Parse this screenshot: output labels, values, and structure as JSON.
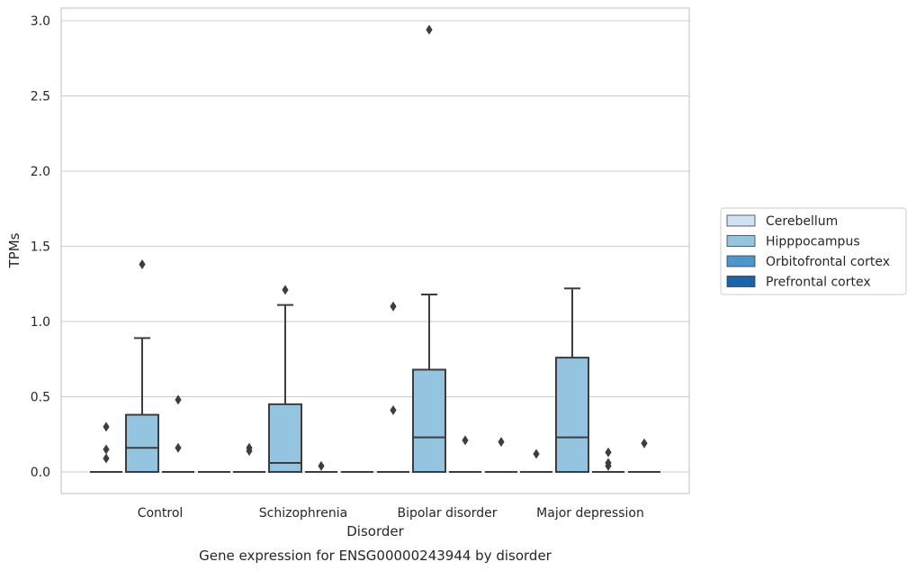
{
  "chart_data": {
    "type": "box",
    "caption": "Gene expression for ENSG00000243944 by disorder",
    "xlabel": "Disorder",
    "ylabel": "TPMs",
    "ylim": [
      -0.14,
      3.09
    ],
    "yticks": [
      0.0,
      0.5,
      1.0,
      1.5,
      2.0,
      2.5,
      3.0
    ],
    "ytick_labels": [
      "0.0",
      "0.5",
      "1.0",
      "1.5",
      "2.0",
      "2.5",
      "3.0"
    ],
    "grid": "horizontal",
    "legend_position": "right",
    "categories": [
      "Control",
      "Schizophrenia",
      "Bipolar disorder",
      "Major depression"
    ],
    "series": [
      {
        "name": "Cerebellum",
        "color": "#d0e1f1",
        "boxes": [
          {
            "q1": 0,
            "median": 0,
            "q3": 0,
            "whislo": 0,
            "whishi": 0,
            "fliers": [
              0.09,
              0.15,
              0.3
            ]
          },
          {
            "q1": 0,
            "median": 0,
            "q3": 0,
            "whislo": 0,
            "whishi": 0,
            "fliers": [
              0.14,
              0.16
            ]
          },
          {
            "q1": 0,
            "median": 0,
            "q3": 0,
            "whislo": 0,
            "whishi": 0,
            "fliers": [
              0.41,
              1.1
            ]
          },
          {
            "q1": 0,
            "median": 0,
            "q3": 0,
            "whislo": 0,
            "whishi": 0,
            "fliers": [
              0.12
            ]
          }
        ]
      },
      {
        "name": "Hipppocampus",
        "color": "#94c4df",
        "boxes": [
          {
            "q1": 0,
            "median": 0.16,
            "q3": 0.38,
            "whislo": 0,
            "whishi": 0.89,
            "fliers": [
              1.38
            ]
          },
          {
            "q1": 0,
            "median": 0.06,
            "q3": 0.45,
            "whislo": 0,
            "whishi": 1.11,
            "fliers": [
              1.21
            ]
          },
          {
            "q1": 0,
            "median": 0.23,
            "q3": 0.68,
            "whislo": 0,
            "whishi": 1.18,
            "fliers": [
              2.94
            ]
          },
          {
            "q1": 0,
            "median": 0.23,
            "q3": 0.76,
            "whislo": 0,
            "whishi": 1.22,
            "fliers": []
          }
        ]
      },
      {
        "name": "Orbitofrontal cortex",
        "color": "#4b97c9",
        "boxes": [
          {
            "q1": 0,
            "median": 0,
            "q3": 0,
            "whislo": 0,
            "whishi": 0,
            "fliers": [
              0.16,
              0.48
            ]
          },
          {
            "q1": 0,
            "median": 0,
            "q3": 0,
            "whislo": 0,
            "whishi": 0,
            "fliers": [
              0.04
            ]
          },
          {
            "q1": 0,
            "median": 0,
            "q3": 0,
            "whislo": 0,
            "whishi": 0,
            "fliers": [
              0.21
            ]
          },
          {
            "q1": 0,
            "median": 0,
            "q3": 0,
            "whislo": 0,
            "whishi": 0,
            "fliers": [
              0.04,
              0.06,
              0.13
            ]
          }
        ]
      },
      {
        "name": "Prefrontal cortex",
        "color": "#1864aa",
        "boxes": [
          {
            "q1": 0,
            "median": 0,
            "q3": 0,
            "whislo": 0,
            "whishi": 0,
            "fliers": []
          },
          {
            "q1": 0,
            "median": 0,
            "q3": 0,
            "whislo": 0,
            "whishi": 0,
            "fliers": []
          },
          {
            "q1": 0,
            "median": 0,
            "q3": 0,
            "whislo": 0,
            "whishi": 0,
            "fliers": [
              0.2
            ]
          },
          {
            "q1": 0,
            "median": 0,
            "q3": 0,
            "whislo": 0,
            "whishi": 0,
            "fliers": [
              0.19
            ]
          }
        ]
      }
    ]
  }
}
